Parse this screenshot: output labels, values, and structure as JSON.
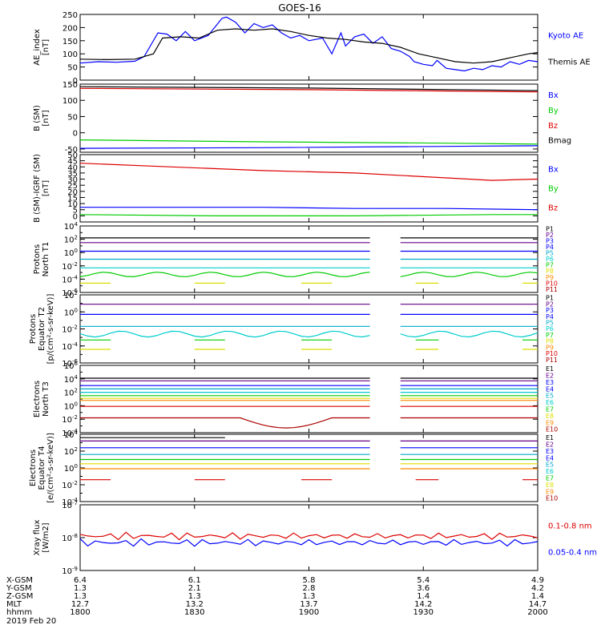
{
  "title": "GOES-16",
  "colors": {
    "black": "#000000",
    "blue": "#0000ff",
    "green": "#00cc00",
    "red": "#dd0000",
    "cyan": "#00cccc",
    "navy": "#000080",
    "purple": "#660088",
    "yellow": "#dddd00",
    "orange": "#ff8800",
    "teal": "#00aacc",
    "dkred": "#aa0000"
  },
  "chart_data": [
    {
      "id": "ae",
      "type": "line",
      "ylabel": [
        "AE_index",
        "[nT]"
      ],
      "ylim": [
        0,
        250
      ],
      "yticks": [
        "0",
        "50",
        "100",
        "150",
        "200",
        "250"
      ],
      "legend": [
        "Kyoto AE",
        "Themis AE"
      ],
      "series": [
        {
          "name": "Kyoto AE",
          "color": "#0000ff",
          "values": [
            [
              0,
              65
            ],
            [
              4,
              70
            ],
            [
              8,
              68
            ],
            [
              12,
              72
            ],
            [
              14,
              90
            ],
            [
              17,
              180
            ],
            [
              19,
              175
            ],
            [
              21,
              150
            ],
            [
              23,
              185
            ],
            [
              25,
              150
            ],
            [
              28,
              170
            ],
            [
              31,
              235
            ],
            [
              32,
              240
            ],
            [
              34,
              220
            ],
            [
              36,
              180
            ],
            [
              38,
              215
            ],
            [
              40,
              200
            ],
            [
              42,
              210
            ],
            [
              44,
              180
            ],
            [
              46,
              160
            ],
            [
              48,
              170
            ],
            [
              50,
              150
            ],
            [
              53,
              160
            ],
            [
              55,
              100
            ],
            [
              57,
              180
            ],
            [
              58,
              130
            ],
            [
              60,
              165
            ],
            [
              62,
              175
            ],
            [
              64,
              140
            ],
            [
              66,
              165
            ],
            [
              68,
              120
            ],
            [
              70,
              110
            ],
            [
              72,
              90
            ],
            [
              73,
              70
            ],
            [
              75,
              60
            ],
            [
              77,
              55
            ],
            [
              78,
              75
            ],
            [
              80,
              45
            ],
            [
              82,
              40
            ],
            [
              84,
              35
            ],
            [
              86,
              45
            ],
            [
              88,
              40
            ],
            [
              90,
              55
            ],
            [
              92,
              50
            ],
            [
              94,
              70
            ],
            [
              96,
              60
            ],
            [
              98,
              75
            ],
            [
              100,
              70
            ]
          ]
        },
        {
          "name": "Themis AE",
          "color": "#000000",
          "values": [
            [
              0,
              80
            ],
            [
              6,
              78
            ],
            [
              12,
              80
            ],
            [
              16,
              100
            ],
            [
              18,
              160
            ],
            [
              22,
              165
            ],
            [
              26,
              160
            ],
            [
              30,
              190
            ],
            [
              34,
              195
            ],
            [
              38,
              190
            ],
            [
              42,
              195
            ],
            [
              46,
              185
            ],
            [
              50,
              170
            ],
            [
              54,
              160
            ],
            [
              58,
              155
            ],
            [
              62,
              145
            ],
            [
              66,
              140
            ],
            [
              70,
              125
            ],
            [
              74,
              100
            ],
            [
              78,
              85
            ],
            [
              82,
              70
            ],
            [
              86,
              65
            ],
            [
              90,
              70
            ],
            [
              94,
              85
            ],
            [
              98,
              100
            ],
            [
              100,
              105
            ]
          ]
        }
      ]
    },
    {
      "id": "bsm",
      "type": "line",
      "ylabel": [
        "B (SM)",
        "[nT]"
      ],
      "ylim": [
        -60,
        150
      ],
      "yticks": [
        "-50",
        "0",
        "50",
        "100",
        "150"
      ],
      "legend": [
        "Bx",
        "By",
        "Bz",
        "Bmag"
      ],
      "series": [
        {
          "name": "Bmag",
          "color": "#000000",
          "values": [
            [
              0,
              142
            ],
            [
              50,
              138
            ],
            [
              100,
              130
            ]
          ]
        },
        {
          "name": "Bz",
          "color": "#dd0000",
          "values": [
            [
              0,
              137
            ],
            [
              50,
              133
            ],
            [
              100,
              126
            ]
          ]
        },
        {
          "name": "By",
          "color": "#00cc00",
          "values": [
            [
              0,
              -22
            ],
            [
              40,
              -28
            ],
            [
              80,
              -32
            ],
            [
              100,
              -35
            ]
          ]
        },
        {
          "name": "Bx",
          "color": "#0000ff",
          "values": [
            [
              0,
              -48
            ],
            [
              40,
              -46
            ],
            [
              80,
              -42
            ],
            [
              100,
              -40
            ]
          ]
        }
      ]
    },
    {
      "id": "bigrf",
      "type": "line",
      "ylabel": [
        "B (SM)-IGRF (SM)",
        "[nT]"
      ],
      "ylim": [
        -5,
        50
      ],
      "yticks": [
        "0",
        "5",
        "10",
        "15",
        "20",
        "25",
        "30",
        "35",
        "40",
        "45",
        "50"
      ],
      "legend": [
        "Bx",
        "By",
        "Bz"
      ],
      "series": [
        {
          "name": "Bz",
          "color": "#dd0000",
          "values": [
            [
              0,
              43
            ],
            [
              20,
              40
            ],
            [
              40,
              37
            ],
            [
              60,
              35
            ],
            [
              80,
              31
            ],
            [
              90,
              29
            ],
            [
              100,
              30
            ]
          ]
        },
        {
          "name": "Bx",
          "color": "#0000ff",
          "values": [
            [
              0,
              7
            ],
            [
              20,
              7
            ],
            [
              40,
              7
            ],
            [
              60,
              6
            ],
            [
              80,
              6
            ],
            [
              100,
              5
            ]
          ]
        },
        {
          "name": "By",
          "color": "#00cc00",
          "values": [
            [
              0,
              1
            ],
            [
              30,
              0
            ],
            [
              60,
              0
            ],
            [
              90,
              1
            ],
            [
              100,
              1
            ]
          ]
        }
      ]
    },
    {
      "id": "pnorth",
      "type": "log",
      "ylabel": [
        "Protons",
        "North T1"
      ],
      "ylim": [
        -6,
        4
      ],
      "yticks": [
        "10^4",
        "10^2",
        "10^0",
        "10^-2",
        "10^-4",
        "10^-6"
      ],
      "gap": [
        63.5,
        70
      ],
      "legend": [
        "P1",
        "P2",
        "P3",
        "P4",
        "P5",
        "P6",
        "P7",
        "P8",
        "P9",
        "P10",
        "P11"
      ],
      "legend_colors": [
        "#000000",
        "#660088",
        "#0000ff",
        "#0000ff",
        "#00aacc",
        "#00cccc",
        "#00cc00",
        "#dddd00",
        "#ff8800",
        "#dd0000",
        "#aa0000"
      ],
      "series": [
        {
          "name": "P1",
          "color": "#000000",
          "level": 2.2
        },
        {
          "name": "P2",
          "color": "#660088",
          "level": 1.5
        },
        {
          "name": "P3",
          "color": "#0000ff",
          "level": 0.2
        },
        {
          "name": "P4",
          "color": "#00aacc",
          "level": -1.0
        },
        {
          "name": "P5",
          "color": "#00cccc",
          "level": -2.3
        },
        {
          "name": "P6",
          "color": "#00cc00",
          "level": -3.3,
          "wiggle": 1
        },
        {
          "name": "P7",
          "color": "#dddd00",
          "level": -4.6,
          "sparse": 1
        }
      ]
    },
    {
      "id": "pequ",
      "type": "log",
      "ylabel": [
        "Protons",
        "Equator T2",
        "[p/(cm²-s-sr-keV)]"
      ],
      "ylim": [
        -6,
        2
      ],
      "yticks": [
        "10^2",
        "10^0",
        "10^-2",
        "10^-4",
        "10^-6"
      ],
      "gap": [
        63.5,
        70
      ],
      "legend": [
        "P1",
        "P2",
        "P3",
        "P4",
        "P5",
        "P6",
        "P7",
        "P8",
        "P9",
        "P10",
        "P11"
      ],
      "legend_colors": [
        "#000000",
        "#660088",
        "#0000ff",
        "#0000ff",
        "#00aacc",
        "#00cccc",
        "#00cc00",
        "#dddd00",
        "#ff8800",
        "#dd0000",
        "#aa0000"
      ],
      "series": [
        {
          "name": "P1",
          "color": "#660088",
          "level": 0.9
        },
        {
          "name": "P2",
          "color": "#0000ff",
          "level": -0.3
        },
        {
          "name": "P3",
          "color": "#00aacc",
          "level": -1.7
        },
        {
          "name": "P4",
          "color": "#00cccc",
          "level": -2.6,
          "wiggle": 1
        },
        {
          "name": "P5",
          "color": "#00cc00",
          "level": -3.3,
          "sparse": 1
        },
        {
          "name": "P6",
          "color": "#dddd00",
          "level": -4.4,
          "sparse": 1
        }
      ]
    },
    {
      "id": "enorth",
      "type": "log",
      "ylabel": [
        "Electrons",
        "North T3"
      ],
      "ylim": [
        -4,
        6
      ],
      "yticks": [
        "10^6",
        "10^4",
        "10^2",
        "10^0",
        "10^-2",
        "10^-4"
      ],
      "gap": [
        63.5,
        70
      ],
      "legend": [
        "E1",
        "E2",
        "E3",
        "E4",
        "E5",
        "E6",
        "E7",
        "E8",
        "E9",
        "E10"
      ],
      "legend_colors": [
        "#000000",
        "#660088",
        "#0000ff",
        "#0000ff",
        "#00aacc",
        "#00cccc",
        "#00cc00",
        "#dddd00",
        "#ff8800",
        "#aa0000"
      ],
      "series": [
        {
          "name": "E1",
          "color": "#000000",
          "level": 4.1
        },
        {
          "name": "E2",
          "color": "#660088",
          "level": 3.7
        },
        {
          "name": "E3",
          "color": "#0000ff",
          "level": 3.0
        },
        {
          "name": "E4",
          "color": "#00aacc",
          "level": 2.5
        },
        {
          "name": "E5",
          "color": "#00cccc",
          "level": 2.0
        },
        {
          "name": "E6",
          "color": "#00cc00",
          "level": 1.5
        },
        {
          "name": "E7",
          "color": "#dddd00",
          "level": 1.1
        },
        {
          "name": "E8",
          "color": "#ff8800",
          "level": 0.8
        },
        {
          "name": "E9",
          "color": "#dd0000",
          "level": -0.1
        },
        {
          "name": "E10",
          "color": "#aa0000",
          "level": -1.8,
          "dip": 1
        }
      ]
    },
    {
      "id": "eequ",
      "type": "log",
      "ylabel": [
        "Electrons",
        "Equator T4",
        "[e/(cm²-s-sr-keV)]"
      ],
      "ylim": [
        -4,
        4
      ],
      "yticks": [
        "10^4",
        "10^2",
        "10^0",
        "10^-2",
        "10^-4"
      ],
      "gap": [
        63.5,
        70
      ],
      "legend": [
        "E1",
        "E2",
        "E3",
        "E4",
        "E5",
        "E6",
        "E7",
        "E8",
        "E9",
        "E10"
      ],
      "legend_colors": [
        "#000000",
        "#660088",
        "#0000ff",
        "#0000ff",
        "#00aacc",
        "#00cccc",
        "#00cc00",
        "#dddd00",
        "#ff8800",
        "#aa0000"
      ],
      "series": [
        {
          "name": "E1",
          "color": "#000000",
          "level": 3.6,
          "partial": 1
        },
        {
          "name": "E2",
          "color": "#660088",
          "level": 3.2
        },
        {
          "name": "E3",
          "color": "#0000ff",
          "level": 2.4
        },
        {
          "name": "E4",
          "color": "#00aacc",
          "level": 1.6
        },
        {
          "name": "E5",
          "color": "#00cc00",
          "level": 1.0
        },
        {
          "name": "E6",
          "color": "#dddd00",
          "level": 0.5
        },
        {
          "name": "E7",
          "color": "#ff8800",
          "level": -0.1
        },
        {
          "name": "E8",
          "color": "#dd0000",
          "level": -1.4,
          "sparse": 1
        }
      ]
    },
    {
      "id": "xray",
      "type": "log",
      "ylabel": [
        "Xray flux",
        "[W/m2]"
      ],
      "ylim": [
        -9,
        -7
      ],
      "yticks": [
        "10^-7",
        "10^-8",
        "10^-9"
      ],
      "legend": [
        "0.1-0.8 nm",
        "0.05-0.4 nm"
      ],
      "legend_colors": [
        "#dd0000",
        "#0000ff"
      ],
      "series": [
        {
          "name": "0.1-0.8 nm",
          "color": "#dd0000",
          "level": -7.95,
          "noise": 1
        },
        {
          "name": "0.05-0.4 nm",
          "color": "#0000ff",
          "level": -8.15,
          "noise": 1
        }
      ]
    }
  ],
  "axis": {
    "row_labels": [
      "X-GSM",
      "Y-GSM",
      "Z-GSM",
      "MLT",
      "hhmm",
      "2019 Feb 20"
    ],
    "columns": [
      {
        "x": "6.4",
        "y": "1.3",
        "z": "1.3",
        "mlt": "12.7",
        "hhmm": "1800"
      },
      {
        "x": "6.1",
        "y": "2.1",
        "z": "1.3",
        "mlt": "13.2",
        "hhmm": "1830"
      },
      {
        "x": "5.8",
        "y": "2.8",
        "z": "1.3",
        "mlt": "13.7",
        "hhmm": "1900"
      },
      {
        "x": "5.4",
        "y": "3.6",
        "z": "1.4",
        "mlt": "14.2",
        "hhmm": "1930"
      },
      {
        "x": "4.9",
        "y": "4.2",
        "z": "1.4",
        "mlt": "14.7",
        "hhmm": "2000"
      }
    ]
  }
}
